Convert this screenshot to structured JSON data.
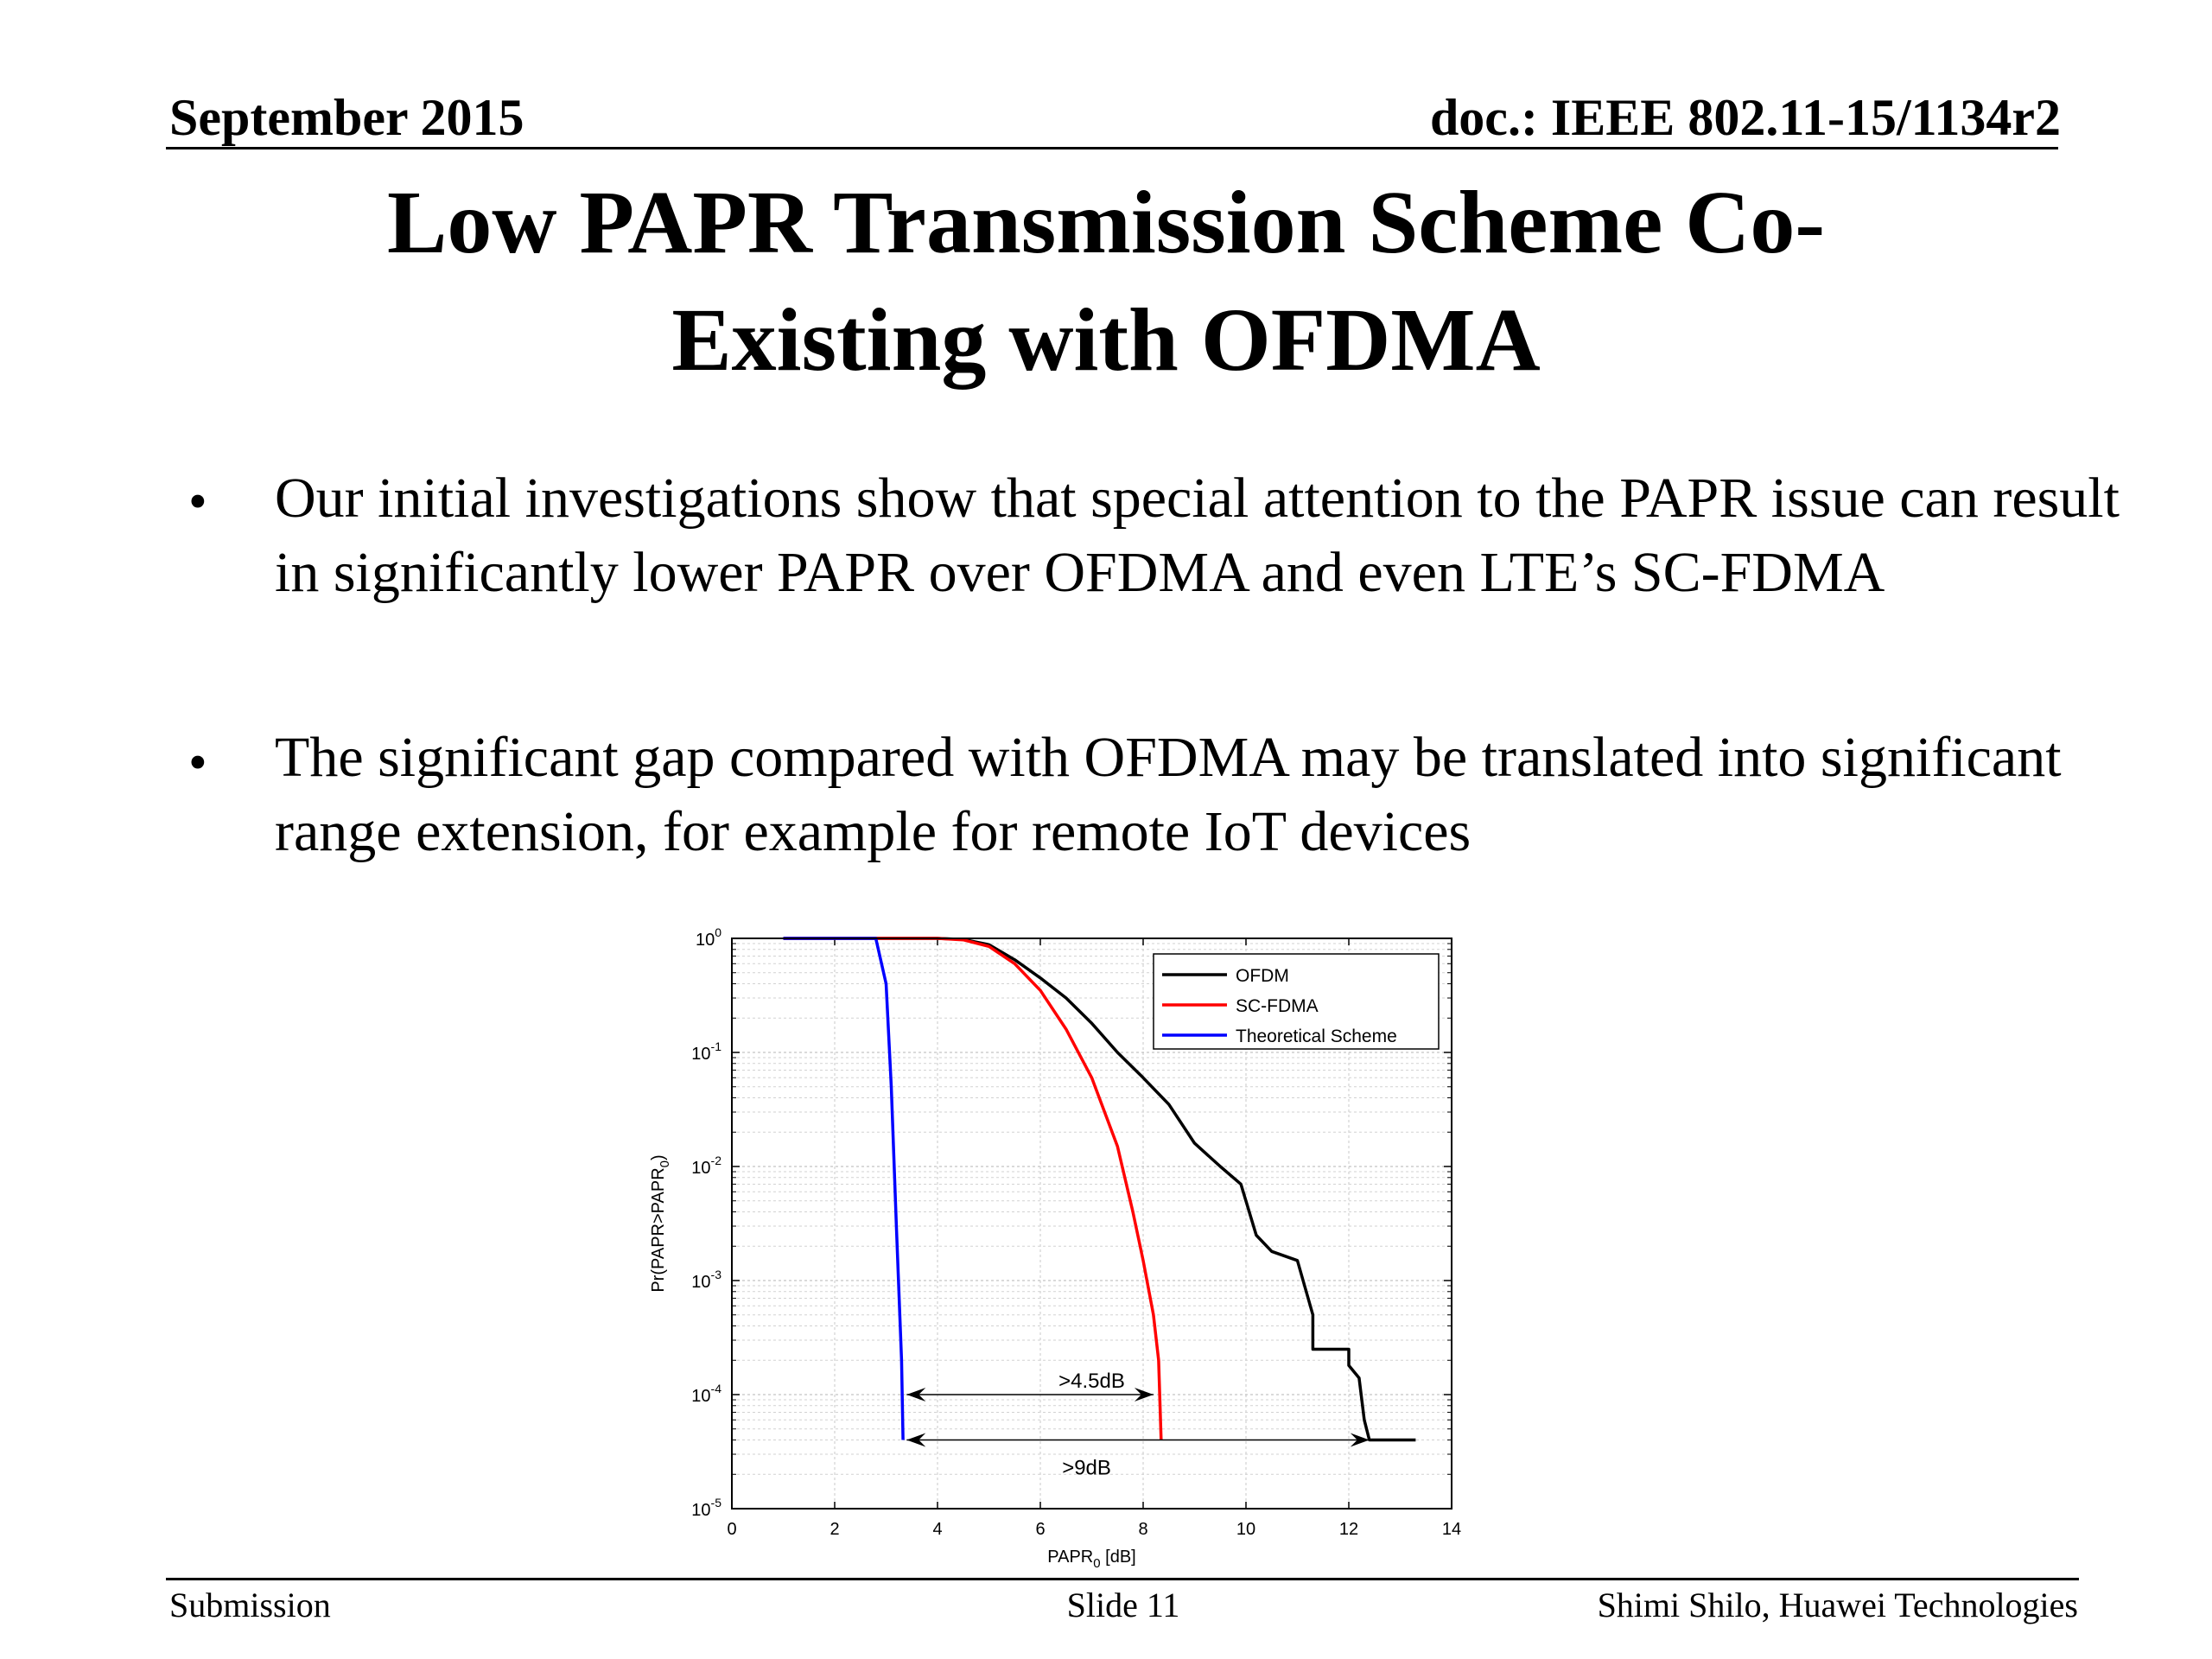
{
  "header": {
    "date": "September 2015",
    "doc": "doc.: IEEE 802.11-15/1134r2"
  },
  "title": {
    "line1": "Low PAPR Transmission Scheme Co-",
    "line2": "Existing with OFDMA"
  },
  "bullets": [
    {
      "marker": "•",
      "text": "Our initial investigations show that special attention to the PAPR issue can result in significantly lower PAPR over OFDMA and even LTE’s SC-FDMA"
    },
    {
      "marker": "•",
      "text": "The significant gap compared with OFDMA may be translated into significant range extension, for example for remote IoT devices"
    }
  ],
  "footer": {
    "left": "Submission",
    "center": "Slide 11",
    "right": "Shimi Shilo, Huawei Technologies"
  },
  "chart_data": {
    "type": "line",
    "xlabel": "PAPR0 [dB]",
    "ylabel": "Pr(PAPR>PAPR0)",
    "xlim": [
      0,
      14
    ],
    "ylim": [
      1e-05,
      1
    ],
    "y_scale": "log",
    "grid": true,
    "legend_position": "top-right",
    "x_ticks": [
      "0",
      "2",
      "4",
      "6",
      "8",
      "10",
      "12",
      "14"
    ],
    "y_ticks": [
      {
        "value": 1,
        "base": "10",
        "exp": "0"
      },
      {
        "value": 0.1,
        "base": "10",
        "exp": "-1"
      },
      {
        "value": 0.01,
        "base": "10",
        "exp": "-2"
      },
      {
        "value": 0.001,
        "base": "10",
        "exp": "-3"
      },
      {
        "value": 0.0001,
        "base": "10",
        "exp": "-4"
      },
      {
        "value": 1e-05,
        "base": "10",
        "exp": "-5"
      }
    ],
    "series": [
      {
        "name": "OFDM",
        "color": "#000000",
        "points": [
          [
            1.0,
            1
          ],
          [
            4.0,
            1
          ],
          [
            4.5,
            0.98
          ],
          [
            5.0,
            0.88
          ],
          [
            5.5,
            0.65
          ],
          [
            6.0,
            0.45
          ],
          [
            6.5,
            0.3
          ],
          [
            7.0,
            0.18
          ],
          [
            7.5,
            0.1
          ],
          [
            8.0,
            0.06
          ],
          [
            8.5,
            0.035
          ],
          [
            9.0,
            0.016
          ],
          [
            9.5,
            0.01
          ],
          [
            9.9,
            0.007
          ],
          [
            10.2,
            0.0025
          ],
          [
            10.5,
            0.0018
          ],
          [
            11.0,
            0.0015
          ],
          [
            11.3,
            0.0005
          ],
          [
            11.3,
            0.00025
          ],
          [
            12.0,
            0.00025
          ],
          [
            12.0,
            0.00018
          ],
          [
            12.2,
            0.00014
          ],
          [
            12.3,
            6e-05
          ],
          [
            12.4,
            4e-05
          ],
          [
            13.3,
            4e-05
          ]
        ]
      },
      {
        "name": "SC-FDMA",
        "color": "#ff0000",
        "points": [
          [
            1.0,
            1
          ],
          [
            4.0,
            1
          ],
          [
            4.5,
            0.97
          ],
          [
            5.0,
            0.85
          ],
          [
            5.5,
            0.6
          ],
          [
            6.0,
            0.35
          ],
          [
            6.5,
            0.16
          ],
          [
            7.0,
            0.06
          ],
          [
            7.5,
            0.015
          ],
          [
            7.8,
            0.004
          ],
          [
            8.0,
            0.0015
          ],
          [
            8.2,
            0.0005
          ],
          [
            8.3,
            0.0002
          ],
          [
            8.35,
            4e-05
          ]
        ]
      },
      {
        "name": "Theoretical Scheme",
        "color": "#0000ff",
        "points": [
          [
            1.0,
            1
          ],
          [
            2.8,
            1
          ],
          [
            3.0,
            0.4
          ],
          [
            3.1,
            0.05
          ],
          [
            3.2,
            0.003
          ],
          [
            3.3,
            0.0002
          ],
          [
            3.33,
            4e-05
          ]
        ]
      }
    ],
    "annotations": [
      {
        "text": ">4.5dB",
        "x_from": 3.4,
        "x_to": 8.2,
        "y": 0.0001
      },
      {
        "text": ">9dB",
        "x_from": 3.4,
        "x_to": 12.4,
        "y": 4e-05
      }
    ]
  }
}
